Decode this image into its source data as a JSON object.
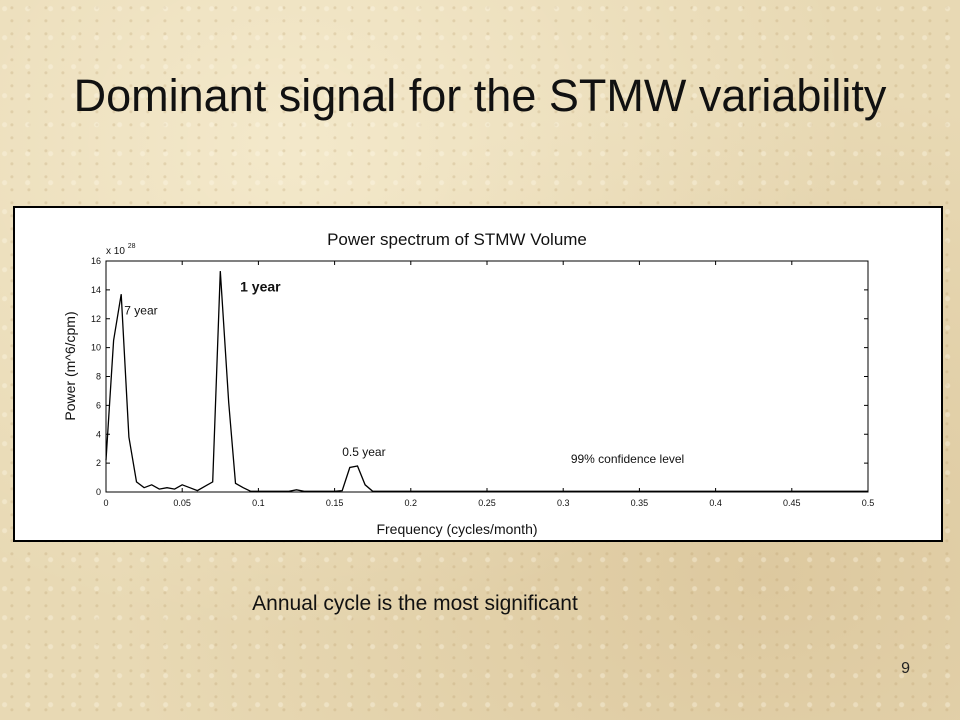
{
  "slide": {
    "title": "Dominant signal for the STMW variability",
    "caption": "Annual cycle is the most significant",
    "slide_number": "9"
  },
  "chart_data": {
    "type": "line",
    "title": "Power spectrum of STMW Volume",
    "xlabel": "Frequency (cycles/month)",
    "ylabel": "Power (m^6/cpm)",
    "y_exponent_label": "x 10",
    "y_exponent_power": "28",
    "xlim": [
      0,
      0.5
    ],
    "ylim": [
      0,
      16
    ],
    "xticks": [
      "0",
      "0.05",
      "0.1",
      "0.15",
      "0.2",
      "0.25",
      "0.3",
      "0.35",
      "0.4",
      "0.45",
      "0.5"
    ],
    "yticks": [
      "0",
      "2",
      "4",
      "6",
      "8",
      "10",
      "12",
      "14",
      "16"
    ],
    "grid": false,
    "line_color": "#000000",
    "series": [
      {
        "x": [
          0,
          0.005,
          0.01,
          0.015,
          0.02,
          0.025,
          0.03,
          0.035,
          0.04,
          0.045,
          0.05,
          0.055,
          0.06,
          0.065,
          0.07,
          0.075,
          0.0805,
          0.085,
          0.09,
          0.095,
          0.1,
          0.105,
          0.11,
          0.115,
          0.12,
          0.125,
          0.13,
          0.135,
          0.14,
          0.145,
          0.15,
          0.155,
          0.16,
          0.165,
          0.17,
          0.175,
          0.18,
          0.185,
          0.19,
          0.2,
          0.25,
          0.3,
          0.35,
          0.4,
          0.45,
          0.5
        ],
        "y": [
          2.2,
          10.5,
          13.7,
          3.8,
          0.7,
          0.3,
          0.5,
          0.2,
          0.3,
          0.2,
          0.5,
          0.3,
          0.1,
          0.4,
          0.7,
          15.3,
          6.2,
          0.6,
          0.3,
          0.05,
          0.05,
          0.05,
          0.05,
          0.05,
          0.05,
          0.15,
          0.05,
          0.05,
          0.05,
          0.05,
          0.05,
          0.1,
          1.7,
          1.8,
          0.5,
          0.05,
          0.05,
          0.05,
          0.05,
          0.05,
          0.05,
          0.05,
          0.05,
          0.05,
          0.05,
          0.05
        ]
      }
    ],
    "annotations": [
      {
        "text": "7 year",
        "x": 0.012,
        "y": 12.3,
        "bold": false
      },
      {
        "text": "1 year",
        "x": 0.088,
        "y": 13.9,
        "bold": true
      },
      {
        "text": "0.5 year",
        "x": 0.155,
        "y": 2.5,
        "bold": false
      },
      {
        "text": "99% confidence level",
        "x": 0.305,
        "y": 2.0,
        "bold": false
      }
    ]
  }
}
